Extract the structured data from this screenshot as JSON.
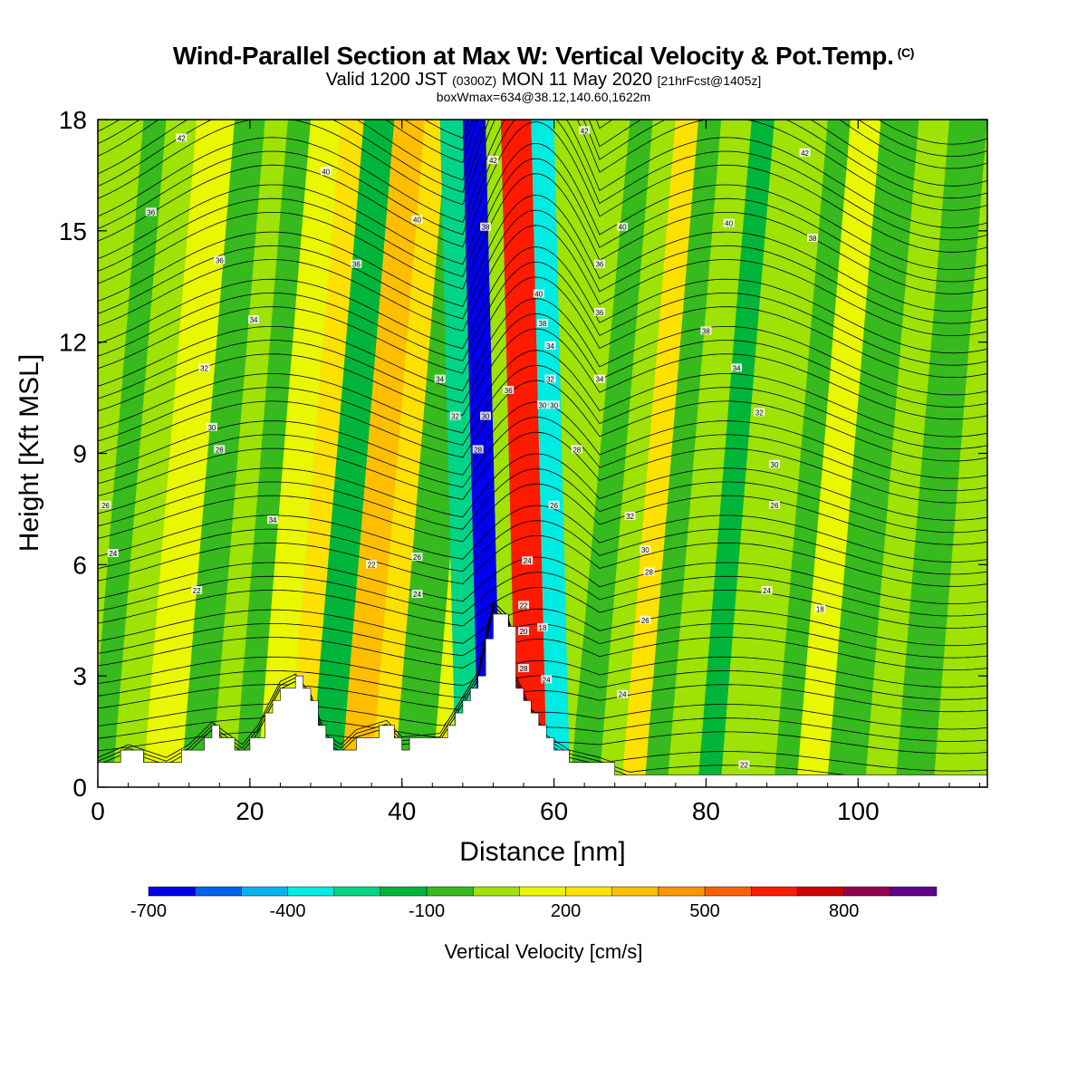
{
  "header": {
    "title": "Wind-Parallel Section at Max W: Vertical Velocity & Pot.Temp.",
    "title_mark": "(C)",
    "subtitle_a": "Valid 1200 JST",
    "subtitle_b": "(0300Z)",
    "subtitle_c": "MON 11 May 2020",
    "subtitle_d": "[21hrFcst@1405z]",
    "subtitle2": "boxWmax=634@38.12,140.60,1622m"
  },
  "chart_data": {
    "type": "heatmap",
    "xlabel": "Distance [nm]",
    "ylabel": "Height [Kft MSL]",
    "xlim": [
      0,
      117
    ],
    "ylim": [
      0,
      18
    ],
    "x_ticks": [
      0,
      20,
      40,
      60,
      80,
      100
    ],
    "y_ticks": [
      0,
      3,
      6,
      9,
      12,
      15,
      18
    ],
    "colorbar": {
      "title": "Vertical Velocity [cm/s]",
      "levels": [
        -700,
        -600,
        -500,
        -400,
        -300,
        -200,
        -100,
        0,
        100,
        200,
        300,
        400,
        500,
        600,
        700,
        800,
        900
      ],
      "tick_labels": [
        "-700",
        "-400",
        "-100",
        "200",
        "500",
        "800"
      ],
      "tick_values": [
        -700,
        -400,
        -100,
        200,
        500,
        800
      ],
      "colors": [
        "#0000ee",
        "#0063ee",
        "#00b4f4",
        "#00ebe1",
        "#00d587",
        "#00b63a",
        "#36ba1d",
        "#9ee206",
        "#e9f700",
        "#ffe100",
        "#ffbf00",
        "#ff9600",
        "#ff6100",
        "#ff1a00",
        "#ce0000",
        "#950050",
        "#620090"
      ]
    },
    "w_bands": [
      {
        "x": [
          0,
          3
        ],
        "w": -60
      },
      {
        "x": [
          3,
          7
        ],
        "w": 60
      },
      {
        "x": [
          7,
          12
        ],
        "w": 140
      },
      {
        "x": [
          12,
          16
        ],
        "w": -10
      },
      {
        "x": [
          16,
          19
        ],
        "w": 60
      },
      {
        "x": [
          19,
          22
        ],
        "w": -60
      },
      {
        "x": [
          22,
          26
        ],
        "w": 160
      },
      {
        "x": [
          26,
          29
        ],
        "w": 280
      },
      {
        "x": [
          29,
          33
        ],
        "w": -200
      },
      {
        "x": [
          33,
          37
        ],
        "w": 380
      },
      {
        "x": [
          37,
          40
        ],
        "w": 200
      },
      {
        "x": [
          40,
          45
        ],
        "w": -80
      },
      {
        "x": [
          45,
          49
        ],
        "w": 140
      },
      {
        "x": [
          49,
          52
        ],
        "w": -250
      },
      {
        "x": [
          52,
          55
        ],
        "w": -650
      },
      {
        "x": [
          55,
          57
        ],
        "w": 50
      },
      {
        "x": [
          57,
          61
        ],
        "w": 630
      },
      {
        "x": [
          61,
          64
        ],
        "w": -350
      },
      {
        "x": [
          64,
          67
        ],
        "w": -80
      },
      {
        "x": [
          67,
          70
        ],
        "w": 60
      },
      {
        "x": [
          70,
          73
        ],
        "w": 250
      },
      {
        "x": [
          73,
          76
        ],
        "w": -60
      },
      {
        "x": [
          76,
          80
        ],
        "w": 40
      },
      {
        "x": [
          80,
          83
        ],
        "w": -120
      },
      {
        "x": [
          83,
          90
        ],
        "w": 60
      },
      {
        "x": [
          90,
          93
        ],
        "w": -40
      },
      {
        "x": [
          93,
          97
        ],
        "w": 150
      },
      {
        "x": [
          97,
          102
        ],
        "w": -80
      },
      {
        "x": [
          102,
          106
        ],
        "w": 60
      },
      {
        "x": [
          106,
          111
        ],
        "w": -60
      },
      {
        "x": [
          111,
          117
        ],
        "w": 90
      }
    ],
    "terrain": {
      "x": [
        0,
        4,
        9,
        12,
        15,
        19,
        21,
        24,
        26,
        28,
        30,
        32,
        34,
        38,
        40,
        45,
        50,
        52,
        54,
        55,
        57,
        59,
        62,
        66,
        70,
        72,
        80,
        100,
        117
      ],
      "y": [
        0.6,
        0.95,
        0.6,
        0.95,
        1.55,
        0.95,
        1.45,
        2.65,
        2.85,
        2.3,
        1.2,
        0.95,
        1.35,
        1.6,
        1.15,
        1.25,
        2.9,
        4.8,
        4.4,
        2.8,
        1.9,
        1.2,
        0.8,
        0.6,
        0.3,
        0.25,
        0.2,
        0.2,
        0.2
      ]
    },
    "theta_contours": {
      "levels": [
        18,
        20,
        22,
        24,
        26,
        28,
        30,
        32,
        34,
        36,
        38,
        40,
        42,
        44,
        46,
        48
      ],
      "labels": [
        {
          "text": "42",
          "x": 11,
          "y": 17.5
        },
        {
          "text": "40",
          "x": 30,
          "y": 16.6
        },
        {
          "text": "36",
          "x": 7,
          "y": 15.5
        },
        {
          "text": "36",
          "x": 16,
          "y": 14.2
        },
        {
          "text": "36",
          "x": 34,
          "y": 14.1
        },
        {
          "text": "34",
          "x": 20.5,
          "y": 12.6
        },
        {
          "text": "32",
          "x": 14,
          "y": 11.3
        },
        {
          "text": "30",
          "x": 15,
          "y": 9.7
        },
        {
          "text": "28",
          "x": 16,
          "y": 9.1
        },
        {
          "text": "26",
          "x": 1,
          "y": 7.6
        },
        {
          "text": "24",
          "x": 2,
          "y": 6.3
        },
        {
          "text": "22",
          "x": 13,
          "y": 5.3
        },
        {
          "text": "34",
          "x": 23,
          "y": 7.2
        },
        {
          "text": "40",
          "x": 42,
          "y": 15.3
        },
        {
          "text": "34",
          "x": 45,
          "y": 11.0
        },
        {
          "text": "32",
          "x": 47,
          "y": 10.0
        },
        {
          "text": "30",
          "x": 51,
          "y": 10.0
        },
        {
          "text": "28",
          "x": 50,
          "y": 9.1
        },
        {
          "text": "26",
          "x": 42,
          "y": 6.2
        },
        {
          "text": "24",
          "x": 42,
          "y": 5.2
        },
        {
          "text": "22",
          "x": 36,
          "y": 6.0
        },
        {
          "text": "42",
          "x": 52,
          "y": 16.9
        },
        {
          "text": "38",
          "x": 51,
          "y": 15.1
        },
        {
          "text": "36",
          "x": 54,
          "y": 10.7
        },
        {
          "text": "40",
          "x": 58,
          "y": 13.3
        },
        {
          "text": "38",
          "x": 58.5,
          "y": 12.5
        },
        {
          "text": "34",
          "x": 59.5,
          "y": 11.9
        },
        {
          "text": "32",
          "x": 59.5,
          "y": 11.0
        },
        {
          "text": "30",
          "x": 58.5,
          "y": 10.3
        },
        {
          "text": "30",
          "x": 60,
          "y": 10.3
        },
        {
          "text": "28",
          "x": 63,
          "y": 9.1
        },
        {
          "text": "26",
          "x": 60,
          "y": 7.6
        },
        {
          "text": "24",
          "x": 56.5,
          "y": 6.1
        },
        {
          "text": "22",
          "x": 56,
          "y": 4.9
        },
        {
          "text": "20",
          "x": 56,
          "y": 4.2
        },
        {
          "text": "18",
          "x": 58.5,
          "y": 4.3
        },
        {
          "text": "28",
          "x": 56,
          "y": 3.2
        },
        {
          "text": "24",
          "x": 59,
          "y": 2.9
        },
        {
          "text": "42",
          "x": 64,
          "y": 17.7
        },
        {
          "text": "36",
          "x": 66,
          "y": 14.1
        },
        {
          "text": "36",
          "x": 66,
          "y": 12.8
        },
        {
          "text": "40",
          "x": 69,
          "y": 15.1
        },
        {
          "text": "34",
          "x": 66,
          "y": 11.0
        },
        {
          "text": "32",
          "x": 70,
          "y": 7.3
        },
        {
          "text": "30",
          "x": 72,
          "y": 6.4
        },
        {
          "text": "28",
          "x": 72.5,
          "y": 5.8
        },
        {
          "text": "26",
          "x": 72,
          "y": 4.5
        },
        {
          "text": "24",
          "x": 69,
          "y": 2.5
        },
        {
          "text": "40",
          "x": 83,
          "y": 15.2
        },
        {
          "text": "38",
          "x": 80,
          "y": 12.3
        },
        {
          "text": "34",
          "x": 84,
          "y": 11.3
        },
        {
          "text": "32",
          "x": 87,
          "y": 10.1
        },
        {
          "text": "30",
          "x": 89,
          "y": 8.7
        },
        {
          "text": "26",
          "x": 89,
          "y": 7.6
        },
        {
          "text": "24",
          "x": 88,
          "y": 5.3
        },
        {
          "text": "18",
          "x": 95,
          "y": 4.8
        },
        {
          "text": "42",
          "x": 93,
          "y": 17.1
        },
        {
          "text": "38",
          "x": 94,
          "y": 14.8
        },
        {
          "text": "22",
          "x": 85,
          "y": 0.6
        }
      ]
    }
  }
}
